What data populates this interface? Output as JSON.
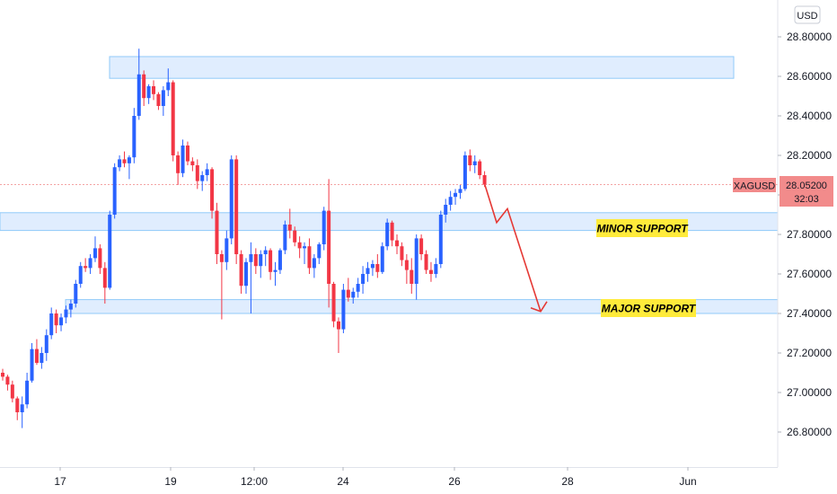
{
  "currency_button": "USD",
  "symbol": "XAGUSD",
  "last_price": "28.05200",
  "countdown": "32:03",
  "colors": {
    "up": "#2962ff",
    "down": "#f23645",
    "zone_fill": "#dbeafe",
    "zone_stroke": "#90caf9",
    "label_bg": "#ffeb3b",
    "price_tag": "#f28b8b",
    "arrow": "#e53935",
    "price_line": "#f4a3a3"
  },
  "zones": {
    "resistance": {
      "from": 28.59,
      "to": 28.7
    },
    "minor": {
      "from": 27.82,
      "to": 27.91,
      "label": "MINOR SUPPORT"
    },
    "major": {
      "from": 27.4,
      "to": 27.47,
      "label": "MAJOR SUPPORT"
    }
  },
  "chart_data": {
    "type": "candlestick",
    "symbol": "XAGUSD",
    "y_ticks": [
      "28.80000",
      "28.60000",
      "28.40000",
      "28.20000",
      "28.00000",
      "27.80000",
      "27.60000",
      "27.40000",
      "27.20000",
      "27.00000",
      "26.80000"
    ],
    "x_ticks": [
      "17",
      "19",
      "12:00",
      "24",
      "26",
      "28",
      "Jun"
    ],
    "ylim": [
      26.66,
      28.9
    ],
    "last_price": 28.052,
    "projection_path": [
      28.05,
      27.86,
      27.93,
      27.41
    ],
    "candles": [
      [
        27.1,
        27.12,
        27.06,
        27.08
      ],
      [
        27.08,
        27.09,
        27.01,
        27.04
      ],
      [
        27.04,
        27.06,
        26.95,
        26.97
      ],
      [
        26.97,
        26.98,
        26.86,
        26.9
      ],
      [
        26.9,
        26.98,
        26.82,
        26.94
      ],
      [
        26.94,
        27.1,
        26.92,
        27.06
      ],
      [
        27.06,
        27.25,
        27.05,
        27.22
      ],
      [
        27.22,
        27.27,
        27.14,
        27.15
      ],
      [
        27.15,
        27.23,
        27.12,
        27.2
      ],
      [
        27.2,
        27.32,
        27.16,
        27.29
      ],
      [
        27.29,
        27.43,
        27.27,
        27.4
      ],
      [
        27.4,
        27.42,
        27.3,
        27.34
      ],
      [
        27.34,
        27.4,
        27.31,
        27.38
      ],
      [
        27.38,
        27.44,
        27.35,
        27.42
      ],
      [
        27.42,
        27.47,
        27.38,
        27.45
      ],
      [
        27.45,
        27.57,
        27.43,
        27.55
      ],
      [
        27.55,
        27.66,
        27.53,
        27.64
      ],
      [
        27.64,
        27.68,
        27.61,
        27.63
      ],
      [
        27.63,
        27.7,
        27.6,
        27.68
      ],
      [
        27.68,
        27.79,
        27.66,
        27.73
      ],
      [
        27.73,
        27.75,
        27.6,
        27.63
      ],
      [
        27.63,
        27.66,
        27.45,
        27.53
      ],
      [
        27.53,
        27.92,
        27.52,
        27.9
      ],
      [
        27.9,
        28.16,
        27.88,
        28.14
      ],
      [
        28.14,
        28.2,
        28.12,
        28.18
      ],
      [
        28.18,
        28.22,
        28.14,
        28.16
      ],
      [
        28.16,
        28.2,
        28.08,
        28.19
      ],
      [
        28.19,
        28.44,
        28.16,
        28.4
      ],
      [
        28.4,
        28.74,
        28.38,
        28.61
      ],
      [
        28.61,
        28.63,
        28.45,
        28.49
      ],
      [
        28.49,
        28.56,
        28.46,
        28.55
      ],
      [
        28.55,
        28.58,
        28.48,
        28.51
      ],
      [
        28.51,
        28.52,
        28.43,
        28.45
      ],
      [
        28.45,
        28.55,
        28.4,
        28.53
      ],
      [
        28.53,
        28.64,
        28.5,
        28.57
      ],
      [
        28.57,
        28.58,
        28.17,
        28.2
      ],
      [
        28.2,
        28.22,
        28.05,
        28.11
      ],
      [
        28.11,
        28.28,
        28.09,
        28.25
      ],
      [
        28.25,
        28.27,
        28.15,
        28.17
      ],
      [
        28.17,
        28.19,
        28.12,
        28.15
      ],
      [
        28.15,
        28.18,
        28.03,
        28.07
      ],
      [
        28.07,
        28.12,
        28.02,
        28.1
      ],
      [
        28.1,
        28.16,
        28.07,
        28.13
      ],
      [
        28.13,
        28.14,
        27.88,
        27.92
      ],
      [
        27.92,
        27.96,
        27.65,
        27.7
      ],
      [
        27.7,
        27.72,
        27.37,
        27.66
      ],
      [
        27.66,
        27.82,
        27.62,
        27.78
      ],
      [
        27.78,
        28.2,
        27.75,
        28.18
      ],
      [
        28.18,
        28.2,
        27.65,
        27.7
      ],
      [
        27.7,
        27.72,
        27.5,
        27.54
      ],
      [
        27.54,
        27.68,
        27.5,
        27.66
      ],
      [
        27.66,
        27.76,
        27.4,
        27.7
      ],
      [
        27.7,
        27.73,
        27.6,
        27.64
      ],
      [
        27.64,
        27.72,
        27.58,
        27.7
      ],
      [
        27.7,
        27.74,
        27.64,
        27.72
      ],
      [
        27.72,
        27.73,
        27.57,
        27.61
      ],
      [
        27.61,
        27.66,
        27.54,
        27.62
      ],
      [
        27.62,
        27.73,
        27.6,
        27.72
      ],
      [
        27.72,
        27.87,
        27.7,
        27.85
      ],
      [
        27.85,
        27.93,
        27.78,
        27.82
      ],
      [
        27.82,
        27.84,
        27.74,
        27.76
      ],
      [
        27.76,
        27.79,
        27.68,
        27.73
      ],
      [
        27.73,
        27.76,
        27.65,
        27.74
      ],
      [
        27.74,
        27.78,
        27.6,
        27.63
      ],
      [
        27.63,
        27.7,
        27.58,
        27.68
      ],
      [
        27.68,
        27.76,
        27.65,
        27.75
      ],
      [
        27.75,
        27.94,
        27.72,
        27.92
      ],
      [
        27.92,
        28.08,
        27.43,
        27.55
      ],
      [
        27.55,
        27.56,
        27.33,
        27.36
      ],
      [
        27.36,
        27.38,
        27.2,
        27.32
      ],
      [
        27.32,
        27.55,
        27.3,
        27.52
      ],
      [
        27.52,
        27.58,
        27.46,
        27.48
      ],
      [
        27.48,
        27.53,
        27.45,
        27.51
      ],
      [
        27.51,
        27.58,
        27.48,
        27.55
      ],
      [
        27.55,
        27.64,
        27.5,
        27.6
      ],
      [
        27.6,
        27.66,
        27.56,
        27.63
      ],
      [
        27.63,
        27.67,
        27.59,
        27.65
      ],
      [
        27.65,
        27.7,
        27.58,
        27.61
      ],
      [
        27.61,
        27.76,
        27.6,
        27.74
      ],
      [
        27.74,
        27.88,
        27.72,
        27.86
      ],
      [
        27.86,
        27.87,
        27.74,
        27.77
      ],
      [
        27.77,
        27.8,
        27.7,
        27.74
      ],
      [
        27.74,
        27.76,
        27.64,
        27.67
      ],
      [
        27.67,
        27.7,
        27.55,
        27.62
      ],
      [
        27.62,
        27.68,
        27.5,
        27.55
      ],
      [
        27.55,
        27.8,
        27.47,
        27.78
      ],
      [
        27.78,
        27.8,
        27.67,
        27.7
      ],
      [
        27.7,
        27.72,
        27.6,
        27.62
      ],
      [
        27.62,
        27.66,
        27.56,
        27.6
      ],
      [
        27.6,
        27.68,
        27.58,
        27.65
      ],
      [
        27.65,
        27.92,
        27.63,
        27.9
      ],
      [
        27.9,
        27.98,
        27.86,
        27.95
      ],
      [
        27.95,
        28.02,
        27.92,
        27.99
      ],
      [
        27.99,
        28.03,
        27.95,
        28.01
      ],
      [
        28.01,
        28.05,
        27.98,
        28.03
      ],
      [
        28.03,
        28.22,
        28.02,
        28.2
      ],
      [
        28.2,
        28.23,
        28.12,
        28.15
      ],
      [
        28.15,
        28.2,
        28.11,
        28.17
      ],
      [
        28.17,
        28.18,
        28.08,
        28.1
      ],
      [
        28.1,
        28.12,
        28.04,
        28.052
      ]
    ]
  }
}
